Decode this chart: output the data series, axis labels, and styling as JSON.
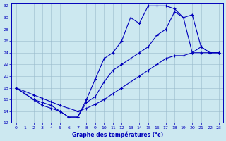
{
  "xlabel": "Graphe des températures (°c)",
  "bg_color": "#cce8f0",
  "line_color": "#0000bb",
  "grid_color": "#99bbcc",
  "xlim": [
    -0.5,
    23.5
  ],
  "ylim": [
    12,
    32.5
  ],
  "xticks": [
    0,
    1,
    2,
    3,
    4,
    5,
    6,
    7,
    8,
    9,
    10,
    11,
    12,
    13,
    14,
    15,
    16,
    17,
    18,
    19,
    20,
    21,
    22,
    23
  ],
  "yticks": [
    12,
    14,
    16,
    18,
    20,
    22,
    24,
    26,
    28,
    30,
    32
  ],
  "line1_x": [
    0,
    1,
    2,
    3,
    4,
    5,
    6,
    7,
    8,
    9,
    10,
    11,
    12,
    13,
    14,
    15,
    16,
    17,
    18,
    19,
    20,
    21,
    22,
    23
  ],
  "line1_y": [
    18,
    17,
    16,
    15,
    14.5,
    14,
    13,
    13,
    16,
    19.5,
    23,
    24,
    26,
    30,
    29,
    32,
    32,
    32,
    31.5,
    30,
    24,
    25,
    24,
    24
  ],
  "line2_x": [
    0,
    1,
    2,
    3,
    4,
    5,
    6,
    7,
    8,
    9,
    10,
    11,
    12,
    13,
    14,
    15,
    16,
    17,
    18,
    19,
    20,
    21,
    22,
    23
  ],
  "line2_y": [
    18,
    17.4,
    16.8,
    16.2,
    15.6,
    15,
    14.5,
    14,
    14.5,
    15.2,
    16,
    17,
    18,
    19,
    20,
    21,
    22,
    23,
    23.5,
    23.5,
    24,
    24,
    24,
    24
  ],
  "line3_x": [
    0,
    2,
    3,
    4,
    5,
    6,
    7,
    8,
    9,
    10,
    11,
    12,
    13,
    14,
    15,
    16,
    17,
    18,
    19,
    20,
    21,
    22,
    23
  ],
  "line3_y": [
    18,
    16,
    15.5,
    15,
    14,
    13,
    13,
    15.5,
    16.5,
    19,
    21,
    22,
    23,
    24,
    25,
    27,
    28,
    31,
    30,
    30.5,
    25,
    24,
    24
  ]
}
